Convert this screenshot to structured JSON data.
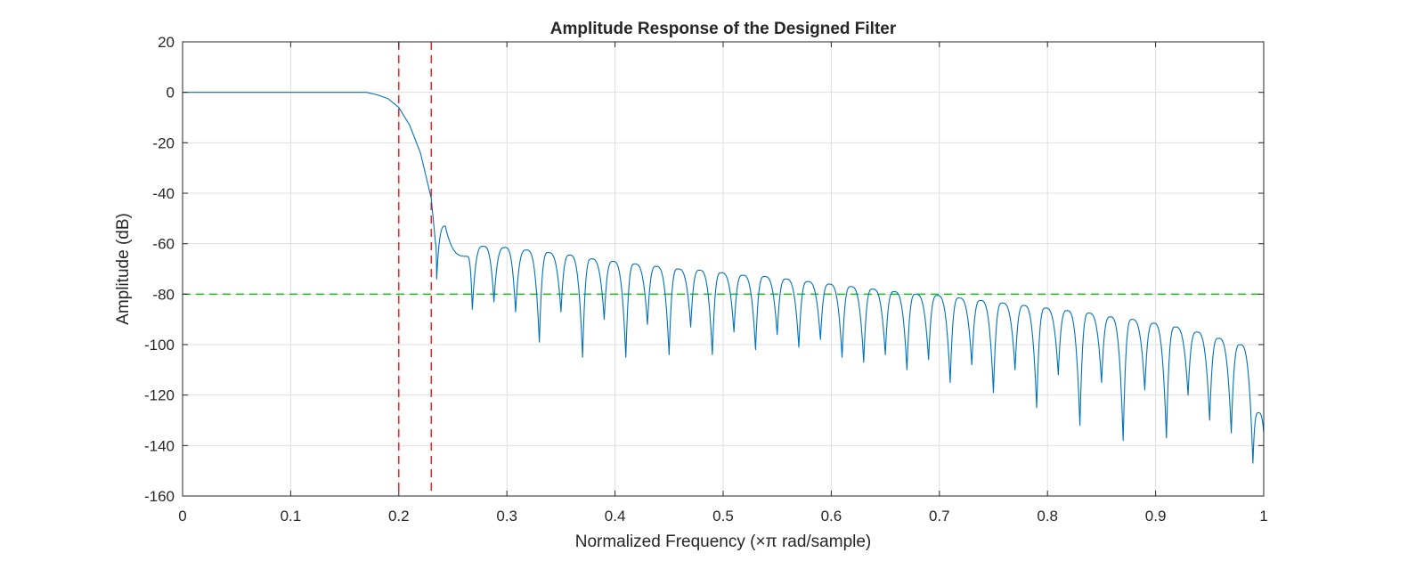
{
  "chart_data": {
    "type": "line",
    "title": "Amplitude Response of the Designed Filter",
    "xlabel": "Normalized Frequency (×π rad/sample)",
    "ylabel": "Amplitude (dB)",
    "xlim": [
      0,
      1
    ],
    "ylim": [
      -160,
      20
    ],
    "xticks": [
      "0",
      "0.1",
      "0.2",
      "0.3",
      "0.4",
      "0.5",
      "0.6",
      "0.7",
      "0.8",
      "0.9",
      "1"
    ],
    "yticks": [
      "20",
      "0",
      "-20",
      "-40",
      "-60",
      "-80",
      "-100",
      "-120",
      "-140",
      "-160"
    ],
    "grid": true,
    "series": [
      {
        "color": "#0072BD",
        "transition_points": [
          [
            0,
            0
          ],
          [
            0.17,
            0
          ],
          [
            0.18,
            -1
          ],
          [
            0.19,
            -2.5
          ],
          [
            0.2,
            -6
          ],
          [
            0.21,
            -13
          ],
          [
            0.22,
            -24
          ],
          [
            0.23,
            -42
          ],
          [
            0.234,
            -60
          ]
        ],
        "stopband_peaks": [
          [
            0.243,
            -53
          ],
          [
            0.263,
            -65
          ],
          [
            0.278,
            -61
          ],
          [
            0.298,
            -61.5
          ],
          [
            0.318,
            -62.5
          ],
          [
            0.338,
            -63.5
          ],
          [
            0.358,
            -64.5
          ],
          [
            0.378,
            -66
          ],
          [
            0.398,
            -67
          ],
          [
            0.418,
            -68
          ],
          [
            0.438,
            -69
          ],
          [
            0.458,
            -70
          ],
          [
            0.478,
            -70.5
          ],
          [
            0.498,
            -71.5
          ],
          [
            0.518,
            -72.5
          ],
          [
            0.538,
            -73
          ],
          [
            0.558,
            -74
          ],
          [
            0.578,
            -75
          ],
          [
            0.598,
            -76
          ],
          [
            0.618,
            -77
          ],
          [
            0.638,
            -78
          ],
          [
            0.658,
            -79
          ],
          [
            0.678,
            -80
          ],
          [
            0.698,
            -80.5
          ],
          [
            0.718,
            -81.5
          ],
          [
            0.738,
            -82.5
          ],
          [
            0.758,
            -83.5
          ],
          [
            0.778,
            -84.5
          ],
          [
            0.798,
            -85.5
          ],
          [
            0.818,
            -86.5
          ],
          [
            0.838,
            -87.5
          ],
          [
            0.858,
            -89
          ],
          [
            0.878,
            -90
          ],
          [
            0.898,
            -91.5
          ],
          [
            0.918,
            -93
          ],
          [
            0.938,
            -95
          ],
          [
            0.958,
            -97.5
          ],
          [
            0.978,
            -100
          ],
          [
            0.995,
            -127
          ]
        ],
        "stopband_nulls": [
          [
            0.235,
            -74
          ],
          [
            0.268,
            -86
          ],
          [
            0.288,
            -83
          ],
          [
            0.308,
            -87
          ],
          [
            0.33,
            -99
          ],
          [
            0.35,
            -87
          ],
          [
            0.37,
            -105
          ],
          [
            0.39,
            -90
          ],
          [
            0.41,
            -105
          ],
          [
            0.43,
            -92
          ],
          [
            0.45,
            -104
          ],
          [
            0.47,
            -93
          ],
          [
            0.49,
            -104
          ],
          [
            0.51,
            -95
          ],
          [
            0.53,
            -102
          ],
          [
            0.55,
            -96
          ],
          [
            0.57,
            -101
          ],
          [
            0.59,
            -98
          ],
          [
            0.61,
            -105
          ],
          [
            0.63,
            -107
          ],
          [
            0.65,
            -104
          ],
          [
            0.67,
            -110
          ],
          [
            0.69,
            -106
          ],
          [
            0.71,
            -115
          ],
          [
            0.73,
            -108
          ],
          [
            0.75,
            -119
          ],
          [
            0.77,
            -110
          ],
          [
            0.79,
            -125
          ],
          [
            0.81,
            -112
          ],
          [
            0.83,
            -132
          ],
          [
            0.85,
            -115
          ],
          [
            0.87,
            -138
          ],
          [
            0.89,
            -118
          ],
          [
            0.91,
            -137
          ],
          [
            0.93,
            -120
          ],
          [
            0.95,
            -130
          ],
          [
            0.97,
            -135
          ],
          [
            0.99,
            -147
          ],
          [
            1.0,
            -135
          ]
        ]
      }
    ],
    "reference_lines": [
      {
        "orientation": "vertical",
        "value": 0.2,
        "color": "#ff0000",
        "style": "dashed"
      },
      {
        "orientation": "vertical",
        "value": 0.23,
        "color": "#ff0000",
        "style": "dashed"
      },
      {
        "orientation": "horizontal",
        "value": -80,
        "color": "#00cc00",
        "style": "dashed"
      }
    ]
  }
}
